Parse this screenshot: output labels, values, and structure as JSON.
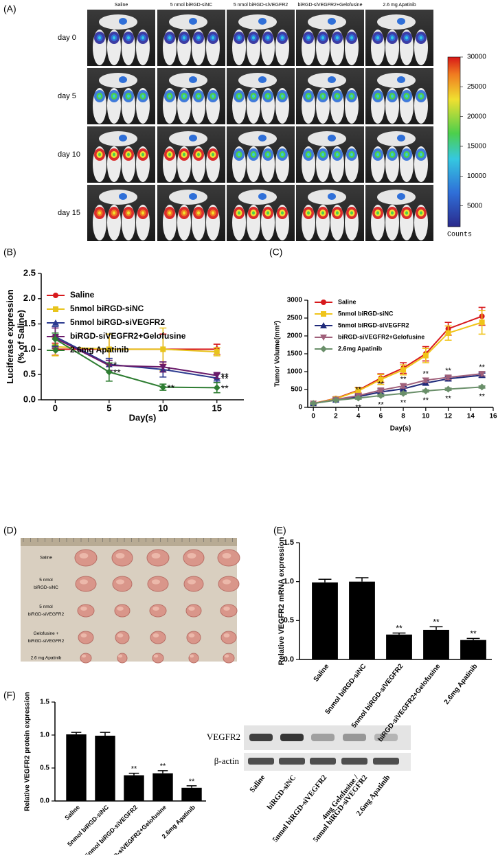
{
  "panel_a": {
    "label": "(A)",
    "columns": [
      "Saline",
      "5 nmol biRGD-siNC",
      "5 nmol biRGD-siVEGFR2",
      "biRGD-siVEGFR2+Gelofusine",
      "2.6 mg Apatinib"
    ],
    "rows": [
      "day  0",
      "day  5",
      "day  10",
      "day  15"
    ],
    "colorbar": {
      "ylim": [
        1500,
        30000
      ],
      "ticks": [
        5000,
        10000,
        15000,
        20000,
        25000,
        30000
      ],
      "label": "Counts"
    }
  },
  "chart_data": [
    {
      "type": "line",
      "panel": "(B)",
      "x_label": "Day(s)",
      "y_label": "Luciferase expression\n(% of Saline)",
      "x": [
        0,
        5,
        10,
        15
      ],
      "xlim": [
        -1.3,
        17.5
      ],
      "xticks": [
        0,
        5,
        10,
        15
      ],
      "ylim": [
        0,
        2.5
      ],
      "yticks": [
        {
          "value": 0,
          "label": "0.0"
        },
        {
          "value": 0.5,
          "label": "0.5"
        },
        {
          "value": 1,
          "label": "1.0"
        },
        {
          "value": 1.5,
          "label": "1.5"
        },
        {
          "value": 2,
          "label": "2.0"
        },
        {
          "value": 2.5,
          "label": "2.5"
        }
      ],
      "legend": "upper left",
      "series": [
        {
          "name": "Saline",
          "color": "#d7191c",
          "marker": "circle",
          "values": [
            1,
            1,
            1,
            1
          ],
          "errors": [
            0.12,
            0.3,
            0.3,
            0.1
          ],
          "significance": [
            null,
            null,
            null,
            null
          ]
        },
        {
          "name": "5nmol biRGD-siNC",
          "color": "#e8c41c",
          "marker": "square",
          "values": [
            1.05,
            1,
            1,
            0.95
          ],
          "errors": [
            0.18,
            0.3,
            0.42,
            0.08
          ],
          "significance": [
            null,
            null,
            null,
            null
          ]
        },
        {
          "name": "5nmol biRGD-siVEGFR2",
          "color": "#2b3a8f",
          "marker": "triangle",
          "values": [
            1.25,
            0.7,
            0.6,
            0.43
          ],
          "errors": [
            0.2,
            0.12,
            0.15,
            0.08
          ],
          "significance": [
            null,
            "*",
            "*",
            "**"
          ]
        },
        {
          "name": "biRGD-siVEGFR2+Gelofusine",
          "color": "#6a1b6a",
          "marker": "triangle-down",
          "values": [
            1.22,
            0.68,
            0.65,
            0.48
          ],
          "errors": [
            0.2,
            0.1,
            0.1,
            0.06
          ],
          "significance": [
            null,
            null,
            null,
            "**"
          ]
        },
        {
          "name": "2.6mg Apatinib",
          "color": "#2e7d32",
          "marker": "diamond",
          "values": [
            1.2,
            0.55,
            0.25,
            0.24
          ],
          "errors": [
            0.12,
            0.18,
            0.06,
            0.1
          ],
          "significance": [
            null,
            "**",
            "**",
            "**"
          ]
        }
      ]
    },
    {
      "type": "line",
      "panel": "(C)",
      "x_label": "Day(s)",
      "y_label": "Tumor Volume(mm³)",
      "x": [
        0,
        2,
        4,
        6,
        8,
        10,
        12,
        15
      ],
      "xlim": [
        -0.5,
        16
      ],
      "xticks": [
        0,
        2,
        4,
        6,
        8,
        10,
        12,
        14,
        16
      ],
      "ylim": [
        0,
        3000
      ],
      "yticks": [
        0,
        500,
        1000,
        1500,
        2000,
        2500,
        3000
      ],
      "legend": "upper left",
      "series": [
        {
          "name": "Saline",
          "color": "#d7191c",
          "marker": "circle",
          "values": [
            110,
            250,
            480,
            820,
            1100,
            1500,
            2200,
            2550
          ],
          "errors": [
            20,
            40,
            80,
            120,
            150,
            200,
            180,
            250
          ],
          "significance": [
            null,
            null,
            null,
            null,
            null,
            null,
            null,
            null
          ]
        },
        {
          "name": "5nmol biRGD-siNC",
          "color": "#f0c419",
          "marker": "square",
          "values": [
            110,
            240,
            460,
            780,
            1050,
            1450,
            2080,
            2380
          ],
          "errors": [
            20,
            40,
            90,
            140,
            140,
            200,
            200,
            330
          ],
          "significance": [
            null,
            null,
            null,
            null,
            null,
            null,
            null,
            null
          ]
        },
        {
          "name": "5nmol biRGD-siVEGFR2",
          "color": "#1f2a7a",
          "marker": "triangle",
          "values": [
            110,
            210,
            300,
            430,
            520,
            680,
            800,
            900
          ],
          "errors": [
            20,
            30,
            40,
            50,
            60,
            60,
            60,
            60
          ],
          "significance": [
            null,
            null,
            null,
            null,
            null,
            null,
            null,
            null
          ]
        },
        {
          "name": "biRGD-siVEGFR2+Gelofusine",
          "color": "#a0607a",
          "marker": "triangle-down",
          "values": [
            110,
            220,
            330,
            480,
            600,
            760,
            840,
            940
          ],
          "errors": [
            20,
            30,
            40,
            50,
            60,
            60,
            60,
            60
          ],
          "significance": [
            null,
            null,
            "**",
            "**",
            "**",
            "**",
            "**",
            "**"
          ]
        },
        {
          "name": "2.6mg Apatinib",
          "color": "#6a8f6a",
          "marker": "diamond",
          "values": [
            110,
            200,
            260,
            330,
            390,
            460,
            510,
            570
          ],
          "errors": [
            20,
            20,
            30,
            30,
            30,
            30,
            30,
            30
          ],
          "significance": [
            null,
            null,
            "**",
            "**",
            "**",
            "**",
            "**",
            "**"
          ]
        }
      ]
    },
    {
      "type": "bar",
      "panel": "(E)",
      "y_label": "Relative VEGFR2 mRNA expression",
      "categories": [
        "Saline",
        "5nmol biRGD-siNC",
        "5nmol biRGD-siVEGFR2",
        "biRGD-siVEGFR2+Gelofusine",
        "2.6mg Apatinib"
      ],
      "values": [
        0.99,
        1,
        0.32,
        0.38,
        0.25
      ],
      "errors": [
        0.04,
        0.05,
        0.02,
        0.04,
        0.02
      ],
      "significance": [
        null,
        null,
        "**",
        "**",
        "**"
      ],
      "color": "#000000",
      "ylim": [
        0,
        1.5
      ],
      "yticks": [
        {
          "value": 0,
          "label": "0.0"
        },
        {
          "value": 0.5,
          "label": "0.5"
        },
        {
          "value": 1,
          "label": "1.0"
        },
        {
          "value": 1.5,
          "label": "1.5"
        }
      ]
    },
    {
      "type": "bar",
      "panel": "(F)",
      "y_label": "Relative VEGFR2 protein expression",
      "categories": [
        "Saline",
        "5nmol biRGD-siNC",
        "5nmol biRGD-siVEGFR2",
        "biRGD-siVEGFR2+Gelofusine",
        "2.6mg Apatinib"
      ],
      "values": [
        1.01,
        0.99,
        0.39,
        0.42,
        0.2
      ],
      "errors": [
        0.03,
        0.05,
        0.03,
        0.04,
        0.03
      ],
      "significance": [
        null,
        null,
        "**",
        "**",
        "**"
      ],
      "color": "#000000",
      "ylim": [
        0,
        1.5
      ],
      "yticks": [
        {
          "value": 0,
          "label": "0.0"
        },
        {
          "value": 0.5,
          "label": "0.5"
        },
        {
          "value": 1,
          "label": "1.0"
        },
        {
          "value": 1.5,
          "label": "1.5"
        }
      ]
    }
  ],
  "panel_d": {
    "label": "(D)",
    "rows": [
      [
        "Saline"
      ],
      [
        "5 nmol",
        "biRGD-siNC"
      ],
      [
        "5 nmol",
        "biRGD-siVEGFR2"
      ],
      [
        "Gelofusine  +",
        "biRGD-siVEGFR2"
      ],
      [
        "2.6 mg Apatinib"
      ]
    ]
  },
  "panel_f_blot": {
    "bands": [
      "VEGFR2",
      "β-actin"
    ],
    "lanes": [
      [
        "Saline"
      ],
      [
        "biRGD-siNC"
      ],
      [
        "5nmol biRGD-siVEGFR2"
      ],
      [
        "4mg Gelofusine /",
        "5nmol biRGD-siVEGFR2"
      ],
      [
        "2.6mg Apatinib"
      ]
    ]
  }
}
